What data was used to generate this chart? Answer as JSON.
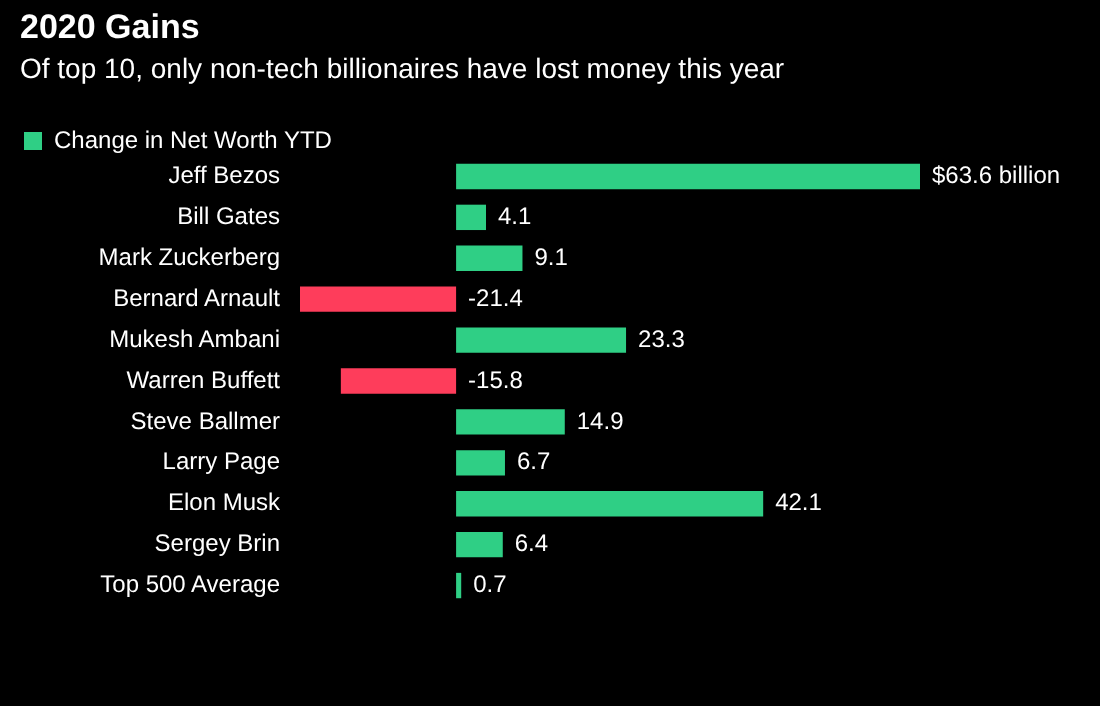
{
  "chart_data": {
    "type": "bar",
    "orientation": "horizontal",
    "title": "2020 Gains",
    "subtitle": "Of top 10, only non-tech billionaires have lost money this year",
    "legend": "top left",
    "categories": [
      "Jeff Bezos",
      "Bill Gates",
      "Mark Zuckerberg",
      "Bernard Arnault",
      "Mukesh Ambani",
      "Warren Buffett",
      "Steve Ballmer",
      "Larry Page",
      "Elon Musk",
      "Sergey Brin",
      "Top 500 Average"
    ],
    "series": [
      {
        "name": "Change in Net Worth YTD",
        "color": "#2fcf85",
        "values": [
          63.6,
          4.1,
          9.1,
          -21.4,
          23.3,
          -15.8,
          14.9,
          6.7,
          42.1,
          6.4,
          0.7
        ],
        "colors": [
          "#2fcf85",
          "#2fcf85",
          "#2fcf85",
          "#fe3d5b",
          "#2fcf85",
          "#fe3d5b",
          "#2fcf85",
          "#2fcf85",
          "#2fcf85",
          "#2fcf85",
          "#2fcf85"
        ],
        "value_labels": [
          "$63.6 billion",
          "4.1",
          "9.1",
          "-21.4",
          "23.3",
          "-15.8",
          "14.9",
          "6.7",
          "42.1",
          "6.4",
          "0.7"
        ]
      }
    ]
  }
}
